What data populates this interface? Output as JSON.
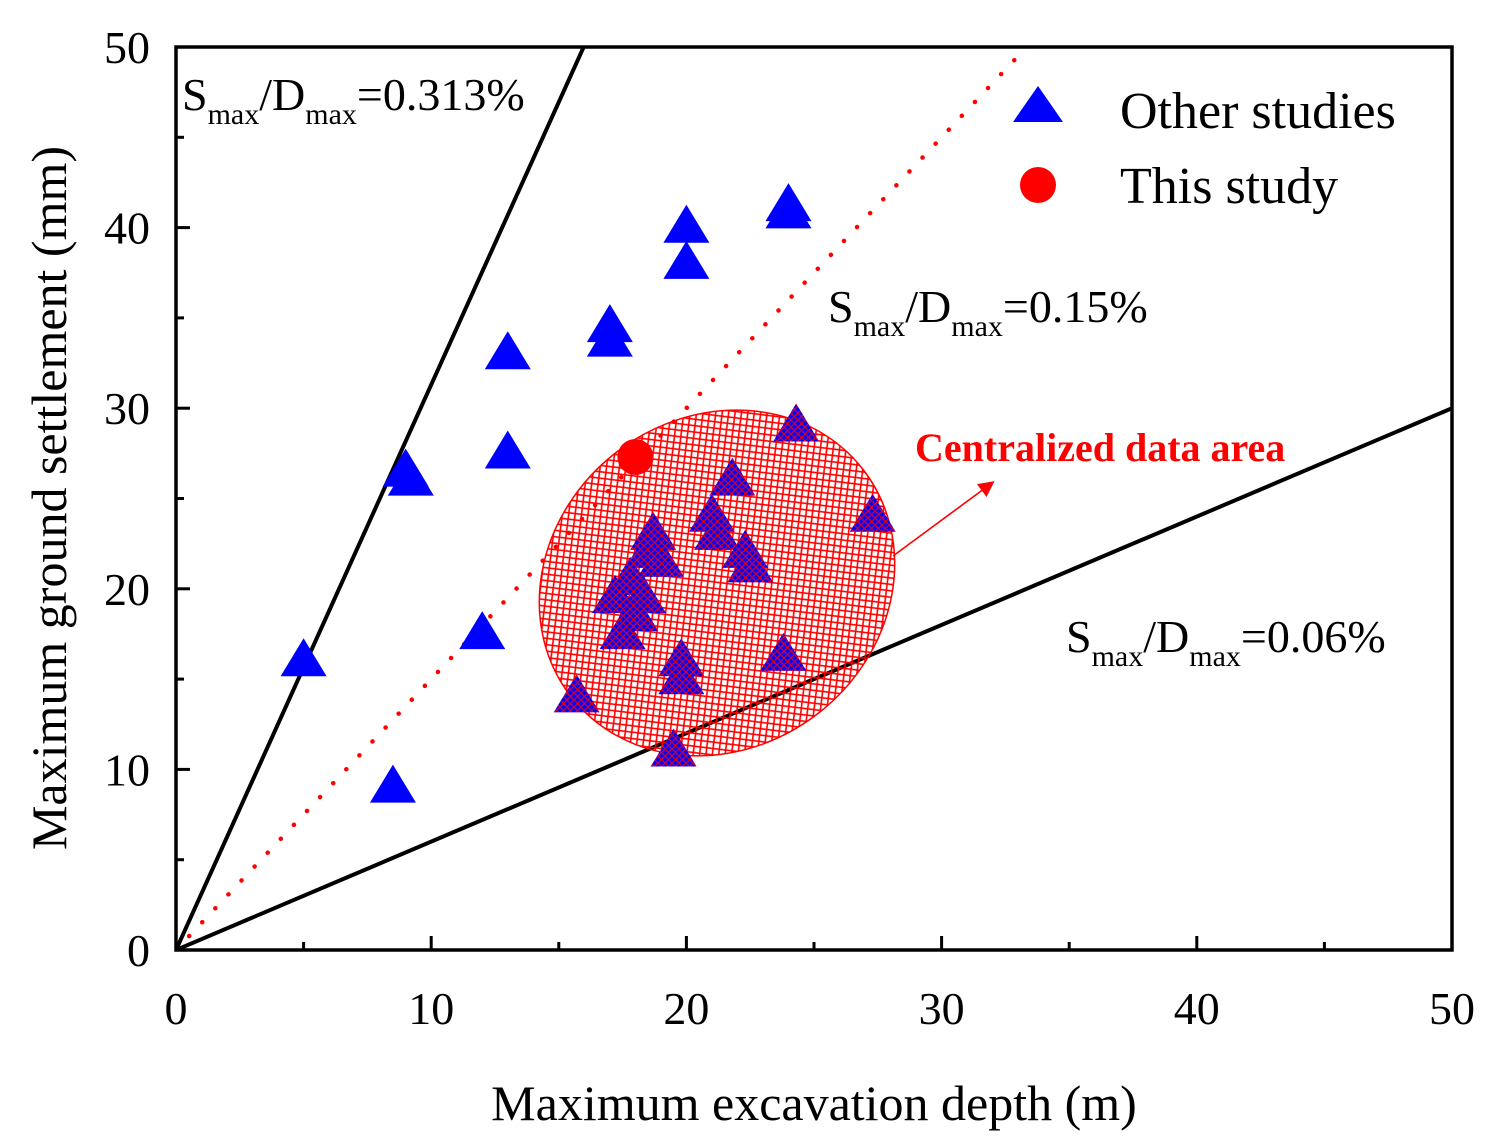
{
  "chart_data": {
    "type": "scatter",
    "xlabel": "Maximum excavation depth (m)",
    "ylabel": "Maximum ground settlement (mm)",
    "xlim": [
      0,
      50
    ],
    "ylim": [
      0,
      50
    ],
    "x_ticks": [
      "0",
      "10",
      "20",
      "30",
      "40",
      "50"
    ],
    "y_ticks": [
      "0",
      "10",
      "20",
      "30",
      "40",
      "50"
    ],
    "grid": false,
    "legend_position": "top-right",
    "series": [
      {
        "name": "Other studies",
        "marker": "triangle",
        "color": "#0000ff",
        "points": [
          {
            "x": 5.0,
            "y": 16.0
          },
          {
            "x": 8.5,
            "y": 9.0
          },
          {
            "x": 9.0,
            "y": 26.5
          },
          {
            "x": 9.2,
            "y": 26.0
          },
          {
            "x": 12.0,
            "y": 17.5
          },
          {
            "x": 13.0,
            "y": 33.0
          },
          {
            "x": 13.0,
            "y": 27.5
          },
          {
            "x": 17.0,
            "y": 34.5
          },
          {
            "x": 17.0,
            "y": 33.7
          },
          {
            "x": 20.0,
            "y": 40.0
          },
          {
            "x": 20.0,
            "y": 38.0
          },
          {
            "x": 24.0,
            "y": 41.2
          },
          {
            "x": 24.0,
            "y": 40.8
          },
          {
            "x": 15.7,
            "y": 14.0
          },
          {
            "x": 17.2,
            "y": 19.5
          },
          {
            "x": 17.5,
            "y": 17.5
          },
          {
            "x": 17.8,
            "y": 20.5
          },
          {
            "x": 18.0,
            "y": 18.5
          },
          {
            "x": 18.5,
            "y": 22.0
          },
          {
            "x": 18.7,
            "y": 23.0
          },
          {
            "x": 19.0,
            "y": 21.5
          },
          {
            "x": 18.3,
            "y": 19.5
          },
          {
            "x": 19.5,
            "y": 11.0
          },
          {
            "x": 19.8,
            "y": 16.0
          },
          {
            "x": 19.8,
            "y": 15.0
          },
          {
            "x": 21.0,
            "y": 24.0
          },
          {
            "x": 21.2,
            "y": 23.0
          },
          {
            "x": 21.8,
            "y": 26.0
          },
          {
            "x": 22.3,
            "y": 22.0
          },
          {
            "x": 22.5,
            "y": 21.2
          },
          {
            "x": 23.8,
            "y": 16.3
          },
          {
            "x": 24.3,
            "y": 29.0
          },
          {
            "x": 27.3,
            "y": 24.0
          }
        ]
      },
      {
        "name": "This study",
        "marker": "circle",
        "color": "#ff0000",
        "points": [
          {
            "x": 18.0,
            "y": 27.3
          }
        ]
      }
    ],
    "reference_lines": [
      {
        "ratio_percent": 0.313,
        "style": "solid",
        "color": "#000000"
      },
      {
        "ratio_percent": 0.15,
        "style": "dotted",
        "color": "#ff0000"
      },
      {
        "ratio_percent": 0.06,
        "style": "solid",
        "color": "#000000"
      }
    ],
    "ratio_labels": [
      {
        "s": "S",
        "s_sub": "max",
        "slash": "/D",
        "d_sub": "max",
        "value": "=0.313%"
      },
      {
        "s": "S",
        "s_sub": "max",
        "slash": "/D",
        "d_sub": "max",
        "value": "=0.15%"
      },
      {
        "s": "S",
        "s_sub": "max",
        "slash": "/D",
        "d_sub": "max",
        "value": "=0.06%"
      }
    ],
    "centralized_area": {
      "label": "Centralized data area",
      "color": "#ff0000",
      "fill": "cross-hatch"
    }
  }
}
